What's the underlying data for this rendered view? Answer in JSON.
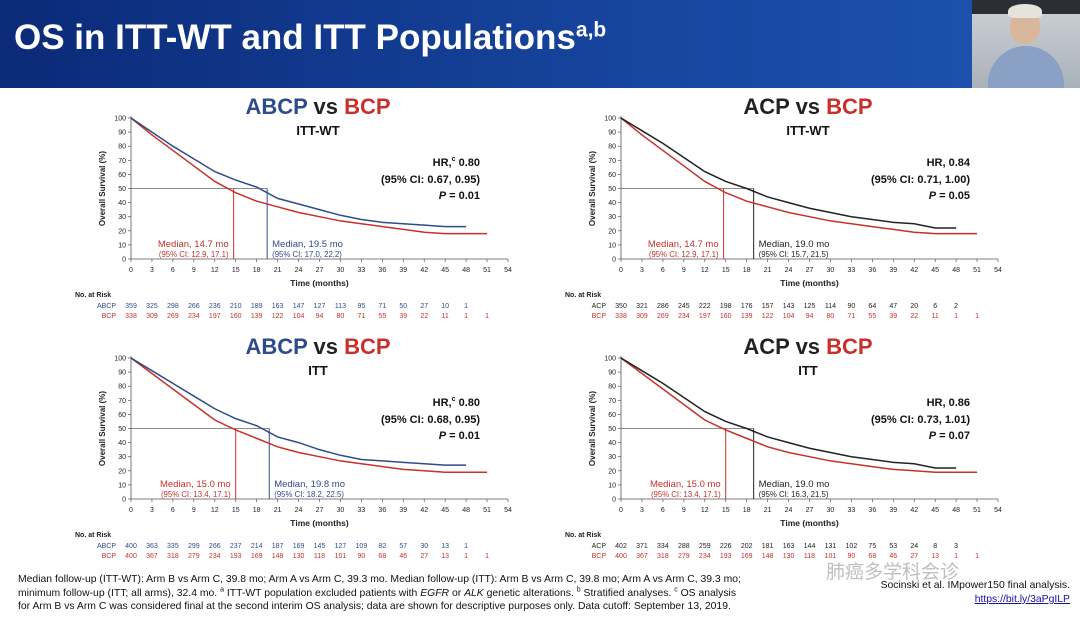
{
  "header": {
    "title": "OS in ITT-WT and ITT Populations",
    "title_sup": "a,b"
  },
  "footnote": {
    "line1": "Median follow-up (ITT-WT): Arm B vs Arm C, 39.8 mo; Arm A vs Arm C, 39.3 mo. Median follow-up (ITT): Arm B vs Arm C, 39.8 mo; Arm A vs Arm C, 39.3 mo;",
    "line2a": "minimum follow-up (ITT; all arms), 32.4 mo.",
    "line2b": "a",
    "line2c": " ITT-WT population excluded patients with ",
    "line2d": "EGFR",
    "line2e": " or ",
    "line2f": "ALK",
    "line2g": " genetic alterations. ",
    "line2h": "b",
    "line2i": " Stratified analyses. ",
    "line2j": "c",
    "line2k": " OS analysis",
    "line3": "for Arm B vs Arm C was considered final at the second interim OS analysis; data are shown for descriptive purposes only. Data cutoff: September 13, 2019."
  },
  "reference": {
    "text": "Socinski et al. IMpower150 final analysis.",
    "link": "https://bit.ly/3aPgILP"
  },
  "watermark": {
    "text": "肺癌多学科会诊"
  },
  "chart_data": [
    {
      "type": "line",
      "id": "abcp-itt-wt",
      "title_arm": "ABCP",
      "title_vs": " vs ",
      "title_ref": "BCP",
      "subtitle": "ITT-WT",
      "arm_color": "#2e4b8c",
      "ref_color": "#c8302c",
      "ylabel": "Overall Survival (%)",
      "xlabel": "Time (months)",
      "xlim": [
        0,
        54
      ],
      "ylim": [
        0,
        100
      ],
      "x_ticks": [
        "0",
        "3",
        "6",
        "9",
        "12",
        "15",
        "18",
        "21",
        "24",
        "27",
        "30",
        "33",
        "36",
        "39",
        "42",
        "45",
        "48",
        "51",
        "54"
      ],
      "y_ticks": [
        "0",
        "10",
        "20",
        "30",
        "40",
        "50",
        "60",
        "70",
        "80",
        "90",
        "100"
      ],
      "hr_label": "HR,",
      "hr_sup": "c",
      "hr_value": " 0.80",
      "ci": "(95% CI: 0.67, 0.95)",
      "p_label": "P",
      "p_value": " = 0.01",
      "median_ref": "Median, 14.7 mo",
      "median_ref_ci": "(95% CI: 12.9, 17.1)",
      "median_arm": "Median, 19.5 mo",
      "median_arm_ci": "(95% CI: 17.0, 22.2)",
      "median_ref_x": 14.7,
      "median_arm_x": 19.5,
      "risk_header": "No. at Risk",
      "risk": [
        {
          "label": "ABCP",
          "values": [
            "359",
            "325",
            "298",
            "266",
            "236",
            "210",
            "189",
            "163",
            "147",
            "127",
            "113",
            "95",
            "71",
            "50",
            "27",
            "10",
            "1",
            ""
          ]
        },
        {
          "label": "BCP",
          "values": [
            "338",
            "309",
            "269",
            "234",
            "197",
            "160",
            "139",
            "122",
            "104",
            "94",
            "80",
            "71",
            "55",
            "39",
            "22",
            "11",
            "1",
            "1"
          ]
        }
      ],
      "series": [
        {
          "name": "ABCP",
          "x": [
            0,
            3,
            6,
            9,
            12,
            15,
            18,
            21,
            24,
            27,
            30,
            33,
            36,
            39,
            42,
            45,
            48
          ],
          "y": [
            100,
            90,
            80,
            71,
            62,
            56,
            51,
            43,
            39,
            35,
            31,
            28,
            26,
            25,
            24,
            23,
            23
          ]
        },
        {
          "name": "BCP",
          "x": [
            0,
            3,
            6,
            9,
            12,
            15,
            18,
            21,
            24,
            27,
            30,
            33,
            36,
            39,
            42,
            45,
            48,
            51
          ],
          "y": [
            100,
            88,
            77,
            66,
            55,
            47,
            41,
            37,
            33,
            30,
            27,
            25,
            23,
            21,
            19,
            18,
            18,
            18
          ]
        }
      ]
    },
    {
      "type": "line",
      "id": "acp-itt-wt",
      "title_arm": "ACP",
      "title_vs": " vs ",
      "title_ref": "BCP",
      "subtitle": "ITT-WT",
      "arm_color": "#222222",
      "ref_color": "#c8302c",
      "ylabel": "Overall Survival (%)",
      "xlabel": "Time (months)",
      "xlim": [
        0,
        54
      ],
      "ylim": [
        0,
        100
      ],
      "x_ticks": [
        "0",
        "3",
        "6",
        "9",
        "12",
        "15",
        "18",
        "21",
        "24",
        "27",
        "30",
        "33",
        "36",
        "39",
        "42",
        "45",
        "48",
        "51",
        "54"
      ],
      "y_ticks": [
        "0",
        "10",
        "20",
        "30",
        "40",
        "50",
        "60",
        "70",
        "80",
        "90",
        "100"
      ],
      "hr_label": "HR,",
      "hr_sup": "",
      "hr_value": " 0.84",
      "ci": "(95% CI: 0.71, 1.00)",
      "p_label": "P",
      "p_value": " = 0.05",
      "median_ref": "Median, 14.7 mo",
      "median_ref_ci": "(95% CI: 12.9, 17.1)",
      "median_arm": "Median, 19.0 mo",
      "median_arm_ci": "(95% CI: 15.7, 21.5)",
      "median_ref_x": 14.7,
      "median_arm_x": 19.0,
      "risk_header": "No. at Risk",
      "risk": [
        {
          "label": "ACP",
          "values": [
            "350",
            "321",
            "286",
            "245",
            "222",
            "198",
            "176",
            "157",
            "143",
            "125",
            "114",
            "90",
            "64",
            "47",
            "20",
            "6",
            "2",
            ""
          ]
        },
        {
          "label": "BCP",
          "values": [
            "338",
            "309",
            "269",
            "234",
            "197",
            "160",
            "139",
            "122",
            "104",
            "94",
            "80",
            "71",
            "55",
            "39",
            "22",
            "11",
            "1",
            "1"
          ]
        }
      ],
      "series": [
        {
          "name": "ACP",
          "x": [
            0,
            3,
            6,
            9,
            12,
            15,
            18,
            21,
            24,
            27,
            30,
            33,
            36,
            39,
            42,
            45,
            48
          ],
          "y": [
            100,
            91,
            82,
            72,
            62,
            55,
            50,
            44,
            40,
            36,
            33,
            30,
            28,
            26,
            25,
            22,
            22
          ]
        },
        {
          "name": "BCP",
          "x": [
            0,
            3,
            6,
            9,
            12,
            15,
            18,
            21,
            24,
            27,
            30,
            33,
            36,
            39,
            42,
            45,
            48,
            51
          ],
          "y": [
            100,
            88,
            77,
            66,
            55,
            47,
            41,
            37,
            33,
            30,
            27,
            25,
            23,
            21,
            19,
            18,
            18,
            18
          ]
        }
      ]
    },
    {
      "type": "line",
      "id": "abcp-itt",
      "title_arm": "ABCP",
      "title_vs": " vs ",
      "title_ref": "BCP",
      "subtitle": "ITT",
      "arm_color": "#2e4b8c",
      "ref_color": "#c8302c",
      "ylabel": "Overall Survival (%)",
      "xlabel": "Time (months)",
      "xlim": [
        0,
        54
      ],
      "ylim": [
        0,
        100
      ],
      "x_ticks": [
        "0",
        "3",
        "6",
        "9",
        "12",
        "15",
        "18",
        "21",
        "24",
        "27",
        "30",
        "33",
        "36",
        "39",
        "42",
        "45",
        "48",
        "51",
        "54"
      ],
      "y_ticks": [
        "0",
        "10",
        "20",
        "30",
        "40",
        "50",
        "60",
        "70",
        "80",
        "90",
        "100"
      ],
      "hr_label": "HR,",
      "hr_sup": "c",
      "hr_value": " 0.80",
      "ci": "(95% CI: 0.68, 0.95)",
      "p_label": "P",
      "p_value": " = 0.01",
      "median_ref": "Median, 15.0 mo",
      "median_ref_ci": "(95% CI: 13.4, 17.1)",
      "median_arm": "Median, 19.8 mo",
      "median_arm_ci": "(95% CI: 18.2, 22.5)",
      "median_ref_x": 15.0,
      "median_arm_x": 19.8,
      "risk_header": "No. at Risk",
      "risk": [
        {
          "label": "ABCP",
          "values": [
            "400",
            "363",
            "335",
            "299",
            "266",
            "237",
            "214",
            "187",
            "169",
            "145",
            "127",
            "109",
            "82",
            "57",
            "30",
            "13",
            "1",
            ""
          ]
        },
        {
          "label": "BCP",
          "values": [
            "400",
            "367",
            "318",
            "279",
            "234",
            "193",
            "169",
            "148",
            "130",
            "118",
            "101",
            "90",
            "68",
            "46",
            "27",
            "13",
            "1",
            "1"
          ]
        }
      ],
      "series": [
        {
          "name": "ABCP",
          "x": [
            0,
            3,
            6,
            9,
            12,
            15,
            18,
            21,
            24,
            27,
            30,
            33,
            36,
            39,
            42,
            45,
            48
          ],
          "y": [
            100,
            91,
            82,
            73,
            64,
            57,
            52,
            44,
            40,
            35,
            31,
            28,
            27,
            26,
            25,
            24,
            24
          ]
        },
        {
          "name": "BCP",
          "x": [
            0,
            3,
            6,
            9,
            12,
            15,
            18,
            21,
            24,
            27,
            30,
            33,
            36,
            39,
            42,
            45,
            48,
            51
          ],
          "y": [
            100,
            89,
            78,
            67,
            56,
            49,
            43,
            37,
            33,
            30,
            27,
            25,
            23,
            21,
            20,
            19,
            19,
            19
          ]
        }
      ]
    },
    {
      "type": "line",
      "id": "acp-itt",
      "title_arm": "ACP",
      "title_vs": " vs ",
      "title_ref": "BCP",
      "subtitle": "ITT",
      "arm_color": "#222222",
      "ref_color": "#c8302c",
      "ylabel": "Overall Survival (%)",
      "xlabel": "Time (months)",
      "xlim": [
        0,
        54
      ],
      "ylim": [
        0,
        100
      ],
      "x_ticks": [
        "0",
        "3",
        "6",
        "9",
        "12",
        "15",
        "18",
        "21",
        "24",
        "27",
        "30",
        "33",
        "36",
        "39",
        "42",
        "45",
        "48",
        "51",
        "54"
      ],
      "y_ticks": [
        "0",
        "10",
        "20",
        "30",
        "40",
        "50",
        "60",
        "70",
        "80",
        "90",
        "100"
      ],
      "hr_label": "HR,",
      "hr_sup": "",
      "hr_value": " 0.86",
      "ci": "(95% CI: 0.73, 1.01)",
      "p_label": "P",
      "p_value": " = 0.07",
      "median_ref": "Median, 15.0 mo",
      "median_ref_ci": "(95% CI: 13.4, 17.1)",
      "median_arm": "Median, 19.0 mo",
      "median_arm_ci": "(95% CI: 16.3, 21.5)",
      "median_ref_x": 15.0,
      "median_arm_x": 19.0,
      "risk_header": "No. at Risk",
      "risk": [
        {
          "label": "ACP",
          "values": [
            "402",
            "371",
            "334",
            "288",
            "259",
            "226",
            "202",
            "181",
            "163",
            "144",
            "131",
            "102",
            "75",
            "53",
            "24",
            "8",
            "3",
            ""
          ]
        },
        {
          "label": "BCP",
          "values": [
            "400",
            "367",
            "318",
            "279",
            "234",
            "193",
            "169",
            "148",
            "130",
            "118",
            "101",
            "90",
            "68",
            "46",
            "27",
            "13",
            "1",
            "1"
          ]
        }
      ],
      "series": [
        {
          "name": "ACP",
          "x": [
            0,
            3,
            6,
            9,
            12,
            15,
            18,
            21,
            24,
            27,
            30,
            33,
            36,
            39,
            42,
            45,
            48
          ],
          "y": [
            100,
            91,
            82,
            72,
            62,
            55,
            50,
            44,
            40,
            36,
            33,
            30,
            28,
            26,
            25,
            22,
            22
          ]
        },
        {
          "name": "BCP",
          "x": [
            0,
            3,
            6,
            9,
            12,
            15,
            18,
            21,
            24,
            27,
            30,
            33,
            36,
            39,
            42,
            45,
            48,
            51
          ],
          "y": [
            100,
            89,
            78,
            67,
            56,
            49,
            43,
            37,
            33,
            30,
            27,
            25,
            23,
            21,
            20,
            19,
            19,
            19
          ]
        }
      ]
    }
  ]
}
